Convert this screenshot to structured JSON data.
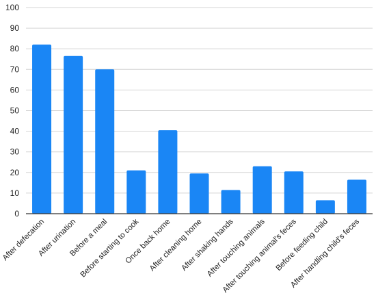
{
  "chart_data": {
    "type": "bar",
    "title": "",
    "xlabel": "",
    "ylabel": "",
    "categories": [
      "After defecation",
      "After urination",
      "Before a meal",
      "Before starting to cook",
      "Once back home",
      "After cleaning home",
      "After shaking hands",
      "After touching animals",
      "After touching animal's feces",
      "Before feeding child",
      "After handling child's feces"
    ],
    "values": [
      82,
      76.5,
      70,
      21,
      40.5,
      19.5,
      11.5,
      23,
      20.5,
      6.5,
      16.5
    ],
    "ylim": [
      0,
      100
    ],
    "yticks": [
      0,
      10,
      20,
      30,
      40,
      50,
      60,
      70,
      80,
      90,
      100
    ],
    "grid": true,
    "legend": "none",
    "colors": {
      "bar": "#1a86f5",
      "grid": "#d4d4d4",
      "axis": "#333333",
      "text": "#222222"
    }
  }
}
